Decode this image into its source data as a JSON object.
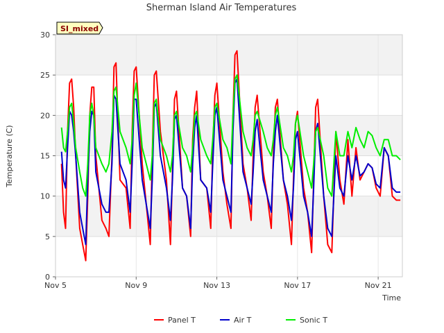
{
  "chart_data": {
    "type": "line",
    "title": "Sherman Island Air Temperatures",
    "xlabel": "Time",
    "ylabel": "Temperature (C)",
    "badge": "SI_mixed",
    "ylim": [
      0,
      30
    ],
    "yticks": [
      0,
      5,
      10,
      15,
      20,
      25,
      30
    ],
    "xlim": [
      5,
      22.2
    ],
    "xticks": [
      {
        "x": 5,
        "label": "Nov 5"
      },
      {
        "x": 9,
        "label": "Nov 9"
      },
      {
        "x": 13,
        "label": "Nov 13"
      },
      {
        "x": 17,
        "label": "Nov 17"
      },
      {
        "x": 21,
        "label": "Nov 21"
      }
    ],
    "x": [
      5.3,
      5.4,
      5.5,
      5.6,
      5.7,
      5.8,
      5.9,
      6.0,
      6.2,
      6.35,
      6.5,
      6.6,
      6.7,
      6.8,
      6.9,
      7.0,
      7.3,
      7.5,
      7.65,
      7.8,
      7.9,
      8.0,
      8.2,
      8.5,
      8.7,
      8.8,
      8.9,
      9.0,
      9.3,
      9.5,
      9.7,
      9.8,
      9.9,
      10.0,
      10.2,
      10.5,
      10.7,
      10.8,
      10.9,
      11.0,
      11.3,
      11.5,
      11.7,
      11.8,
      11.9,
      12.0,
      12.2,
      12.5,
      12.7,
      12.8,
      12.9,
      13.0,
      13.3,
      13.5,
      13.7,
      13.8,
      13.9,
      14.0,
      14.3,
      14.5,
      14.7,
      14.8,
      14.9,
      15.0,
      15.3,
      15.5,
      15.7,
      15.8,
      15.9,
      16.0,
      16.3,
      16.5,
      16.7,
      16.8,
      16.9,
      17.0,
      17.3,
      17.5,
      17.7,
      17.8,
      17.9,
      18.0,
      18.3,
      18.5,
      18.7,
      18.9,
      19.1,
      19.3,
      19.5,
      19.7,
      19.9,
      20.1,
      20.3,
      20.5,
      20.7,
      20.9,
      21.1,
      21.3,
      21.5,
      21.7,
      21.9,
      22.1
    ],
    "series": [
      {
        "name": "Panel T",
        "color": "#ff0000",
        "values": [
          14,
          8,
          6,
          18,
          24,
          24.5,
          21,
          15,
          6,
          4,
          2,
          10,
          20,
          23.5,
          23.5,
          15,
          7,
          6,
          5,
          15,
          26,
          26.5,
          12,
          11,
          6,
          18,
          25.5,
          26,
          14,
          9,
          4,
          15,
          25,
          25.5,
          18,
          12,
          4,
          13,
          22,
          23,
          11,
          10,
          5,
          17,
          21,
          23,
          12,
          11,
          6,
          16,
          22.5,
          24,
          13,
          9,
          6,
          20,
          27.5,
          28,
          14,
          11,
          7,
          15,
          21,
          22.5,
          13,
          10,
          6,
          15,
          21,
          22,
          12,
          9,
          4,
          12,
          19,
          20.5,
          11,
          8,
          3,
          12,
          21,
          22,
          10,
          4,
          3,
          18,
          12,
          9,
          17,
          10,
          16,
          12,
          13,
          14,
          13.5,
          11,
          10,
          16,
          15,
          10,
          9.5,
          9.5
        ]
      },
      {
        "name": "Air T",
        "color": "#0000cc",
        "values": [
          15.5,
          12,
          11,
          16,
          20.5,
          20,
          18,
          15,
          8,
          6,
          4,
          12,
          18,
          20.5,
          20,
          13,
          9,
          8,
          8,
          14,
          22.5,
          22,
          14,
          12,
          8,
          14,
          22,
          22,
          12,
          9,
          6,
          12,
          21,
          21.5,
          15,
          11,
          7,
          12,
          19.5,
          20,
          11,
          10,
          6,
          14,
          18.5,
          20,
          12,
          11,
          8,
          14,
          20,
          21,
          12,
          10,
          8,
          18,
          24,
          24.5,
          13,
          11,
          9,
          13,
          18,
          19.5,
          12,
          10,
          8,
          14,
          18,
          20,
          12,
          10,
          7,
          11,
          17,
          18,
          10,
          8,
          5,
          11,
          18,
          19,
          10,
          6,
          5,
          15,
          11,
          10,
          15,
          12,
          15,
          12.5,
          13,
          14,
          13.5,
          11.5,
          11,
          16,
          15,
          11,
          10.5,
          10.5
        ]
      },
      {
        "name": "Sonic T",
        "color": "#00ee00",
        "values": [
          18.5,
          16,
          15.5,
          18,
          21,
          21.5,
          19,
          16,
          13,
          11,
          10,
          14,
          20,
          21.5,
          20,
          16,
          14,
          13,
          14,
          18,
          23,
          23.5,
          18,
          16,
          14,
          17,
          22.5,
          24,
          16,
          14,
          12,
          15,
          21.5,
          22,
          17,
          15,
          13,
          15,
          20,
          20.5,
          16,
          15,
          13,
          16,
          20,
          20.5,
          17,
          15,
          14,
          17,
          21,
          21.5,
          17,
          16,
          14,
          20,
          24.5,
          25,
          18,
          16,
          15,
          17,
          20,
          20.5,
          18,
          16,
          15,
          17,
          20,
          21,
          16,
          15,
          13,
          15,
          19,
          20,
          15,
          13,
          11,
          14,
          18,
          18.5,
          15,
          11,
          10,
          18,
          15,
          15,
          18,
          16,
          18.5,
          17,
          16,
          18,
          17.5,
          16,
          15,
          17,
          17,
          15,
          15,
          14.5
        ]
      }
    ],
    "legend_position": "bottom"
  }
}
